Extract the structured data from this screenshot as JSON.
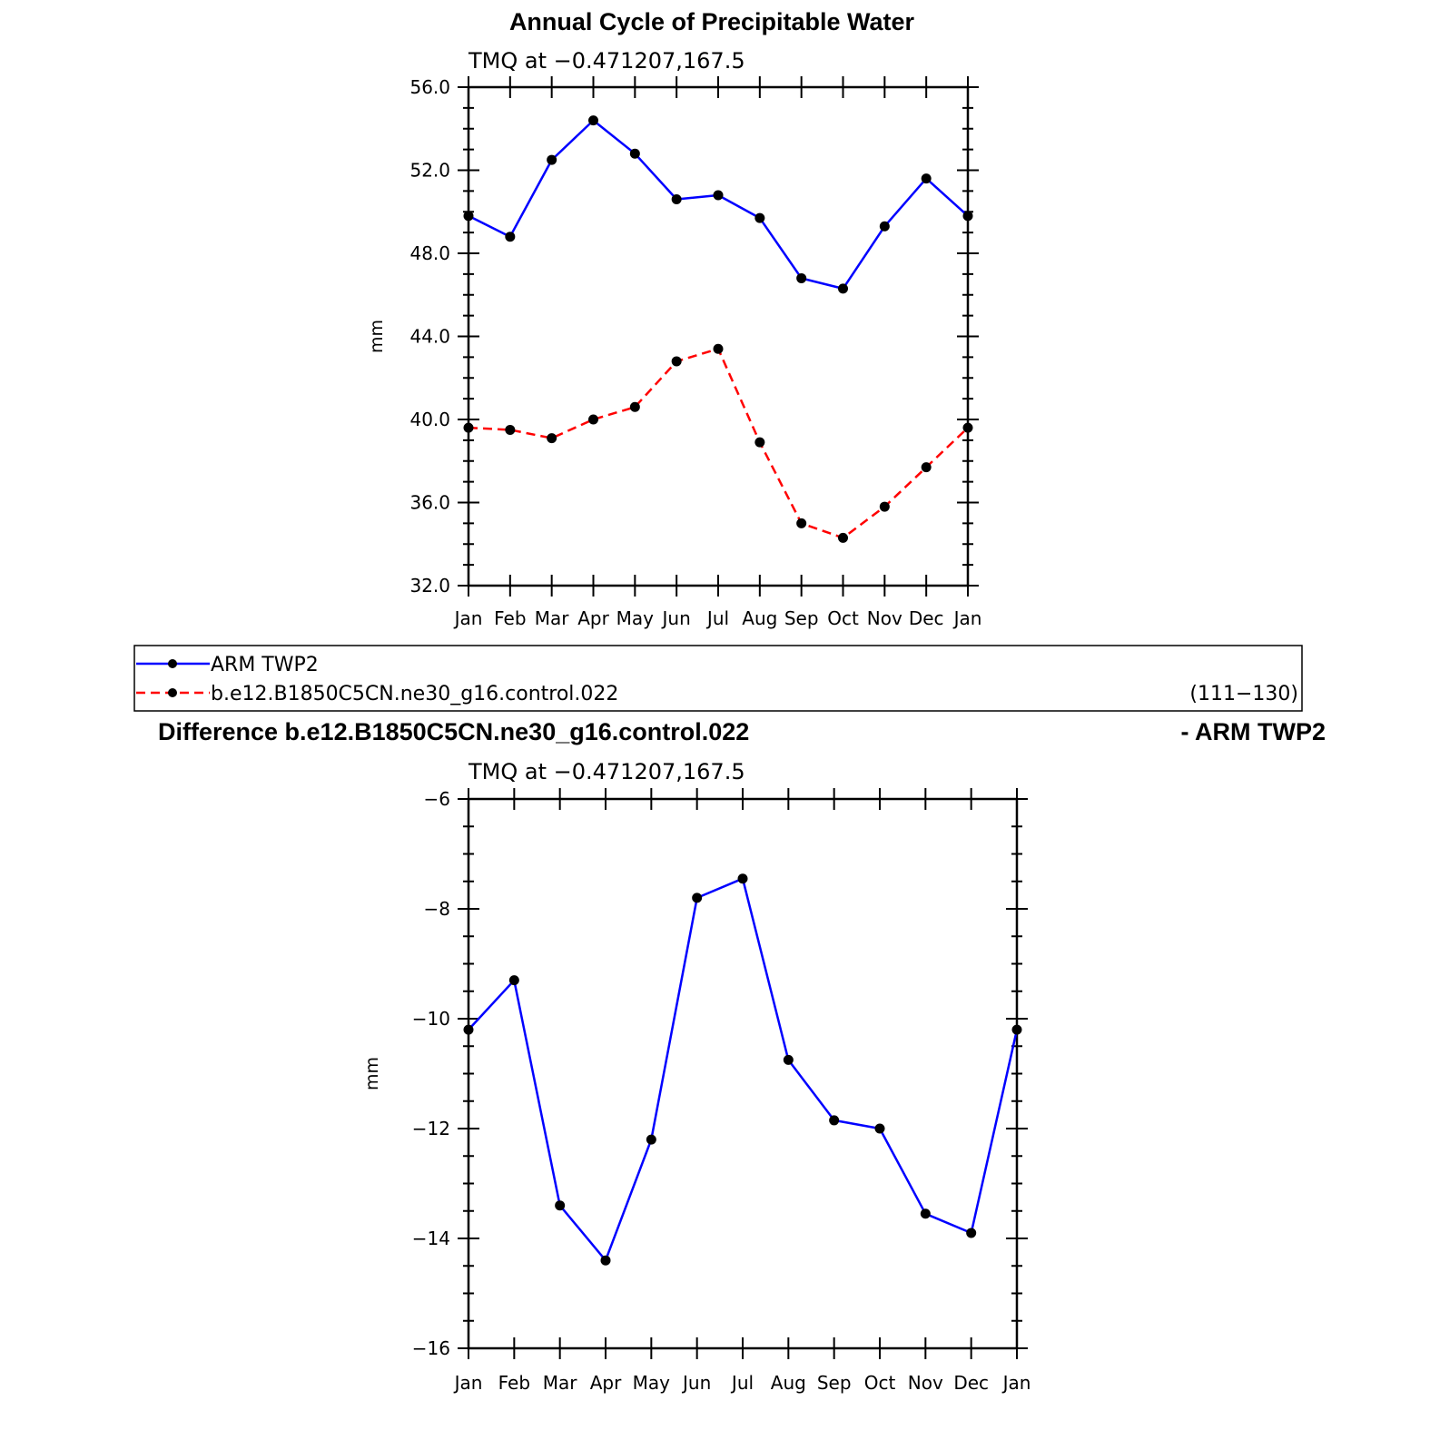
{
  "figure_title": "Annual Cycle of Precipitable Water",
  "legend": {
    "entries": [
      {
        "label": "ARM TWP2",
        "color": "#0000ff",
        "dash": "solid"
      },
      {
        "label": "b.e12.B1850C5CN.ne30_g16.control.022",
        "color": "#ff0000",
        "dash": "dashed"
      }
    ],
    "years": "(111−130)"
  },
  "diff_title": {
    "left": "Difference b.e12.B1850C5CN.ne30_g16.control.022",
    "right": "- ARM TWP2"
  },
  "chart_data": [
    {
      "type": "line",
      "subtitle": "TMQ at −0.471207,167.5",
      "ylabel": "mm",
      "xlabel": "",
      "ylim": [
        32,
        56
      ],
      "yticks": [
        32,
        36,
        40,
        44,
        48,
        52,
        56
      ],
      "ytick_labels": [
        "32.0",
        "36.0",
        "40.0",
        "44.0",
        "48.0",
        "52.0",
        "56.0"
      ],
      "categories": [
        "Jan",
        "Feb",
        "Mar",
        "Apr",
        "May",
        "Jun",
        "Jul",
        "Aug",
        "Sep",
        "Oct",
        "Nov",
        "Dec",
        "Jan"
      ],
      "series": [
        {
          "name": "ARM TWP2",
          "color": "#0000ff",
          "dash": "solid",
          "values": [
            49.8,
            48.8,
            52.5,
            54.4,
            52.8,
            50.6,
            50.8,
            49.7,
            46.8,
            46.3,
            49.3,
            51.6,
            49.8
          ]
        },
        {
          "name": "b.e12.B1850C5CN.ne30_g16.control.022",
          "color": "#ff0000",
          "dash": "dashed",
          "values": [
            39.6,
            39.5,
            39.1,
            40.0,
            40.6,
            42.8,
            43.4,
            38.9,
            35.0,
            34.3,
            35.8,
            37.7,
            39.6
          ]
        }
      ]
    },
    {
      "type": "line",
      "subtitle": "TMQ at −0.471207,167.5",
      "ylabel": "mm",
      "xlabel": "",
      "ylim": [
        -16,
        -6
      ],
      "yticks": [
        -16,
        -14,
        -12,
        -10,
        -8,
        -6
      ],
      "ytick_labels": [
        "−16",
        "−14",
        "−12",
        "−10",
        "−8",
        "−6"
      ],
      "categories": [
        "Jan",
        "Feb",
        "Mar",
        "Apr",
        "May",
        "Jun",
        "Jul",
        "Aug",
        "Sep",
        "Oct",
        "Nov",
        "Dec",
        "Jan"
      ],
      "series": [
        {
          "name": "Difference",
          "color": "#0000ff",
          "dash": "solid",
          "values": [
            -10.2,
            -9.3,
            -13.4,
            -14.4,
            -12.2,
            -7.8,
            -7.45,
            -10.75,
            -11.85,
            -12.0,
            -13.55,
            -13.9,
            -10.2
          ]
        }
      ]
    }
  ]
}
